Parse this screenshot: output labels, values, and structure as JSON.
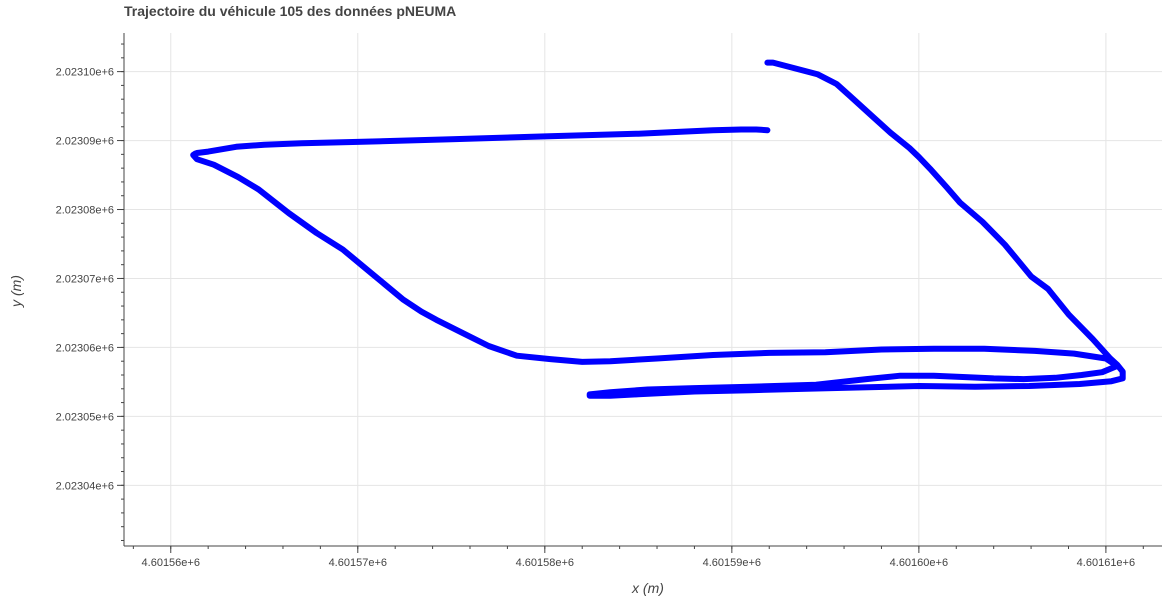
{
  "chart_data": {
    "type": "line",
    "title": "Trajectoire du véhicule 105 des données pNEUMA",
    "xlabel": "x (m)",
    "ylabel": "y (m)",
    "xlim": [
      4601557.5,
      4601613
    ],
    "ylim": [
      2023031.2,
      2023105.6
    ],
    "x_ticks": [
      {
        "value": 4601560,
        "label": "4.60156e+6"
      },
      {
        "value": 4601570,
        "label": "4.60157e+6"
      },
      {
        "value": 4601580,
        "label": "4.60158e+6"
      },
      {
        "value": 4601590,
        "label": "4.60159e+6"
      },
      {
        "value": 4601600,
        "label": "4.60160e+6"
      },
      {
        "value": 4601610,
        "label": "4.60161e+6"
      }
    ],
    "y_ticks": [
      {
        "value": 2023040,
        "label": "2.02304e+6"
      },
      {
        "value": 2023050,
        "label": "2.02305e+6"
      },
      {
        "value": 2023060,
        "label": "2.02306e+6"
      },
      {
        "value": 2023070,
        "label": "2.02307e+6"
      },
      {
        "value": 2023080,
        "label": "2.02308e+6"
      },
      {
        "value": 2023090,
        "label": "2.02309e+6"
      },
      {
        "value": 2023100,
        "label": "2.02310e+6"
      }
    ],
    "grid": true,
    "series": [
      {
        "color": "#0000ff",
        "x": [
          4601591.9,
          4601592.2,
          4601593.2,
          4601594.6,
          4601595.6,
          4601596.3,
          4601597.4,
          4601598.5,
          4601599.5,
          4601600.0,
          4601600.6,
          4601601.5,
          4601602.2,
          4601603.4,
          4601604.6,
          4601605.3,
          4601606.0,
          4601606.9,
          4601608.0,
          4601609.3,
          4601610.2,
          4601610.6,
          4601610.9,
          4601610.9,
          4601610.3,
          4601608.6,
          4601605.9,
          4601603.0,
          4601600.0,
          4601597.0,
          4601594.0,
          4601591.0,
          4601588.0,
          4601585.0,
          4601583.5,
          4601582.4,
          4601582.4,
          4601583.5,
          4601585.5,
          4601588.0,
          4601591.0,
          4601594.5,
          4601597.2,
          4601599.0,
          4601600.8,
          4601602.5,
          4601604.0,
          4601605.6,
          4601607.3,
          4601608.7,
          4601609.8,
          4601610.6,
          4601610.0,
          4601608.3,
          4601606.2,
          4601603.5,
          4601600.8,
          4601598.0,
          4601595.0,
          4601592.0,
          4601589.0,
          4601586.0,
          4601583.5,
          4601582.0,
          4601580.3,
          4601578.5,
          4601577.0,
          4601575.6,
          4601574.2,
          4601573.4,
          4601572.4,
          4601570.8,
          4601569.2,
          4601567.8,
          4601566.3,
          4601564.7,
          4601563.6,
          4601562.3,
          4601561.4,
          4601561.2,
          4601561.3,
          4601561.4,
          4601562.0,
          4601563.5,
          4601565.0,
          4601567.0,
          4601570.0,
          4601575.0,
          4601580.0,
          4601585.0,
          4601589.0,
          4601590.5,
          4601591.3,
          4601591.9
        ],
        "y": [
          2023101.3,
          2023101.3,
          2023100.6,
          2023099.6,
          2023098.2,
          2023096.5,
          2023093.8,
          2023091.1,
          2023088.9,
          2023087.6,
          2023085.9,
          2023083.2,
          2023081.0,
          2023078.2,
          2023074.9,
          2023072.6,
          2023070.3,
          2023068.5,
          2023064.8,
          2023061.2,
          2023058.5,
          2023057.5,
          2023056.5,
          2023055.5,
          2023055.1,
          2023054.7,
          2023054.4,
          2023054.3,
          2023054.4,
          2023054.2,
          2023054.0,
          2023053.8,
          2023053.6,
          2023053.2,
          2023053.0,
          2023053.0,
          2023053.2,
          2023053.5,
          2023053.9,
          2023054.1,
          2023054.3,
          2023054.6,
          2023055.4,
          2023055.9,
          2023055.9,
          2023055.7,
          2023055.5,
          2023055.4,
          2023055.6,
          2023056.0,
          2023056.4,
          2023057.3,
          2023058.4,
          2023059.1,
          2023059.5,
          2023059.8,
          2023059.8,
          2023059.7,
          2023059.3,
          2023059.2,
          2023058.9,
          2023058.4,
          2023058.0,
          2023057.9,
          2023058.3,
          2023058.8,
          2023060.2,
          2023062.1,
          2023064.0,
          2023065.2,
          2023067.0,
          2023070.6,
          2023074.2,
          2023076.6,
          2023079.5,
          2023082.9,
          2023084.7,
          2023086.5,
          2023087.3,
          2023087.9,
          2023088.1,
          2023088.2,
          2023088.4,
          2023089.1,
          2023089.4,
          2023089.6,
          2023089.8,
          2023090.2,
          2023090.6,
          2023091.0,
          2023091.5,
          2023091.6,
          2023091.6,
          2023091.5
        ]
      }
    ]
  }
}
